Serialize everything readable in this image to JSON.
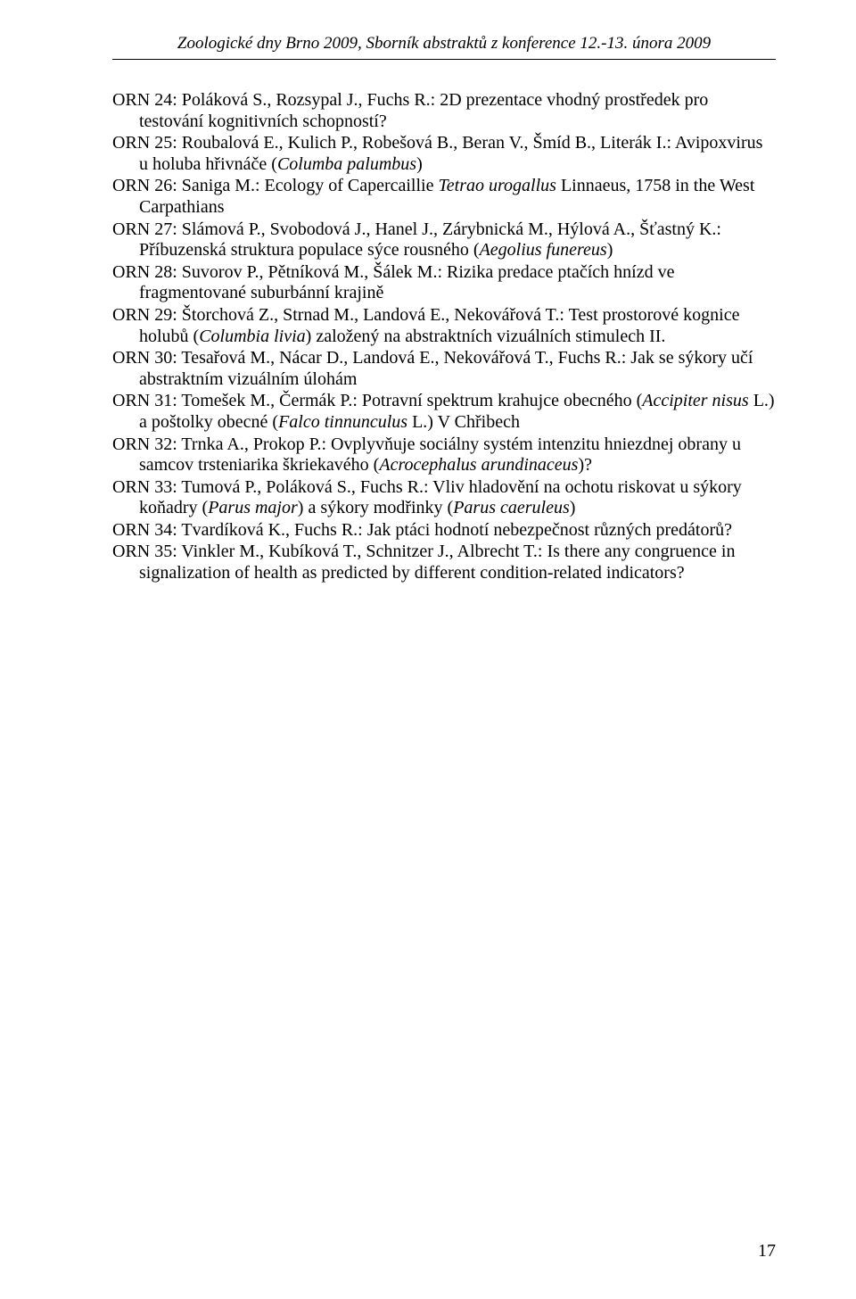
{
  "header": "Zoologické dny Brno 2009, Sborník abstraktů z konference 12.-13. února 2009",
  "entries": [
    {
      "pre": "ORN 24: Poláková S., Rozsypal J., Fuchs R.: 2D prezentace vhodný prostředek pro testování kognitivních schopností?",
      "it1": "",
      "mid": "",
      "it2": "",
      "post": ""
    },
    {
      "pre": "ORN 25: Roubalová E., Kulich P., Robešová B., Beran V., Šmíd B., Literák I.: Avipoxvirus u holuba hřivnáče (",
      "it1": "Columba palumbus",
      "mid": ")",
      "it2": "",
      "post": ""
    },
    {
      "pre": "ORN 26: Saniga M.: Ecology of Capercaillie ",
      "it1": "Tetrao urogallus",
      "mid": " Linnaeus, 1758 in the West Carpathians",
      "it2": "",
      "post": ""
    },
    {
      "pre": "ORN 27: Slámová P., Svobodová J., Hanel J., Zárybnická M., Hýlová A., Šťastný K.: Příbuzenská struktura populace sýce rousného (",
      "it1": "Aegolius funereus",
      "mid": ")",
      "it2": "",
      "post": ""
    },
    {
      "pre": "ORN 28: Suvorov P., Pětníková M., Šálek M.: Rizika predace ptačích hnízd  ve fragmentované suburbánní krajině",
      "it1": "",
      "mid": "",
      "it2": "",
      "post": ""
    },
    {
      "pre": "ORN 29: Štorchová Z., Strnad M., Landová E., Nekovářová T.: Test prostorové kognice holubů (",
      "it1": "Columbia livia",
      "mid": ") založený na abstraktních vizuálních stimulech II.",
      "it2": "",
      "post": ""
    },
    {
      "pre": "ORN 30: Tesařová M., Nácar D., Landová E., Nekovářová T., Fuchs R.: Jak se sýkory učí abstraktním vizuálním úlohám",
      "it1": "",
      "mid": "",
      "it2": "",
      "post": ""
    },
    {
      "pre": "ORN 31: Tomešek M., Čermák P.: Potravní spektrum krahujce obecného (",
      "it1": "Accipiter nisus",
      "mid": " L.) a poštolky obecné (",
      "it2": "Falco tinnunculus",
      "post": " L.) V Chřibech"
    },
    {
      "pre": "ORN 32: Trnka A., Prokop P.: Ovplyvňuje sociálny systém intenzitu hniezdnej obrany u samcov trsteniarika škriekavého (",
      "it1": "Acrocephalus arundinaceus",
      "mid": ")?",
      "it2": "",
      "post": ""
    },
    {
      "pre": "ORN 33: Tumová P., Poláková S., Fuchs R.: Vliv hladovění na ochotu riskovat u sýkory koňadry (",
      "it1": "Parus major",
      "mid": ") a sýkory modřinky (",
      "it2": "Parus caeruleus",
      "post": ")"
    },
    {
      "pre": "ORN 34: Tvardíková K., Fuchs R.: Jak ptáci hodnotí nebezpečnost různých predátorů?",
      "it1": "",
      "mid": "",
      "it2": "",
      "post": ""
    },
    {
      "pre": "ORN 35: Vinkler M., Kubíková T., Schnitzer J., Albrecht T.: Is there any congruence in signalization of health as predicted by different condition-related indicators?",
      "it1": "",
      "mid": "",
      "it2": "",
      "post": ""
    }
  ],
  "page_number": "17"
}
